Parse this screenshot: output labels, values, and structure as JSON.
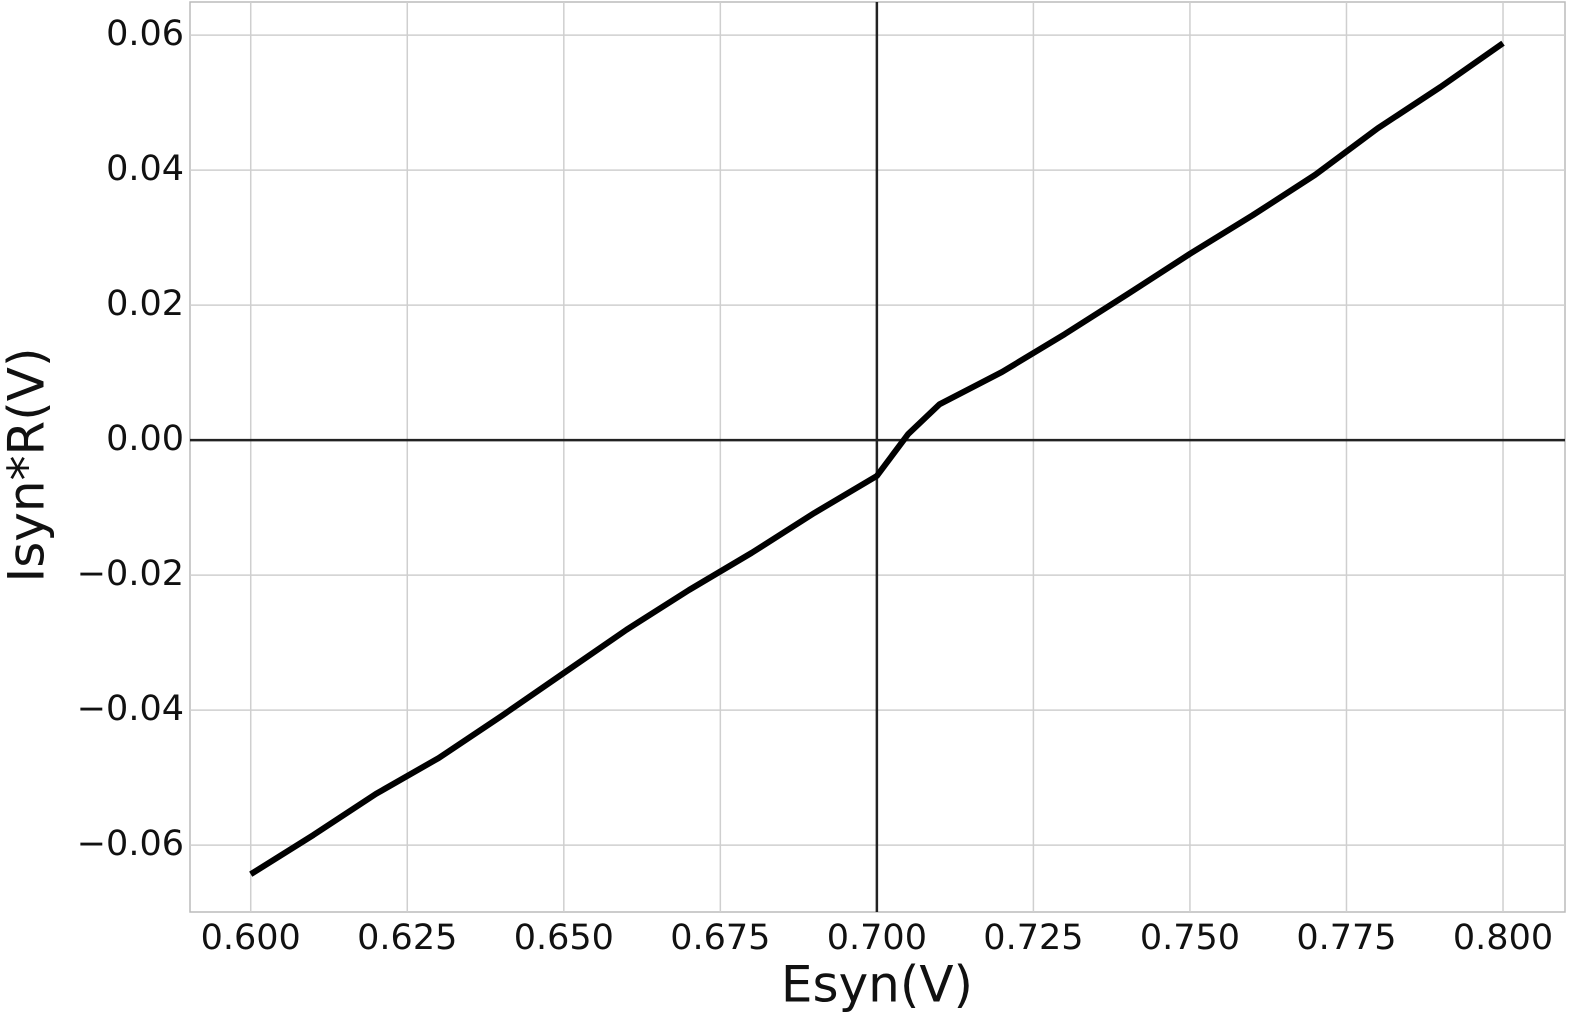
{
  "chart_data": {
    "type": "line",
    "xlabel": "Esyn(V)",
    "ylabel": "Isyn*R(V)",
    "x": [
      0.6,
      0.61,
      0.62,
      0.63,
      0.64,
      0.65,
      0.66,
      0.67,
      0.68,
      0.69,
      0.7,
      0.705,
      0.71,
      0.72,
      0.73,
      0.74,
      0.75,
      0.76,
      0.77,
      0.78,
      0.79,
      0.8
    ],
    "series": [
      {
        "color": "#000000",
        "values": [
          -0.0643,
          -0.0585,
          -0.0524,
          -0.0471,
          -0.0409,
          -0.0345,
          -0.0281,
          -0.0222,
          -0.0167,
          -0.0108,
          -0.0053,
          0.0009,
          0.0053,
          0.0101,
          0.0157,
          0.0216,
          0.0276,
          0.0333,
          0.0393,
          0.0462,
          0.0523,
          0.0588
        ]
      }
    ],
    "xlim": [
      0.5903,
      0.8099
    ],
    "ylim": [
      -0.0699,
      0.0649
    ],
    "xticks": [
      {
        "value": 0.6,
        "label": "0.600"
      },
      {
        "value": 0.625,
        "label": "0.625"
      },
      {
        "value": 0.65,
        "label": "0.650"
      },
      {
        "value": 0.675,
        "label": "0.675"
      },
      {
        "value": 0.7,
        "label": "0.700"
      },
      {
        "value": 0.725,
        "label": "0.725"
      },
      {
        "value": 0.75,
        "label": "0.750"
      },
      {
        "value": 0.775,
        "label": "0.775"
      },
      {
        "value": 0.8,
        "label": "0.800"
      }
    ],
    "yticks": [
      {
        "value": -0.06,
        "label": "−0.06"
      },
      {
        "value": -0.04,
        "label": "−0.04"
      },
      {
        "value": -0.02,
        "label": "−0.02"
      },
      {
        "value": 0,
        "label": "0.00"
      },
      {
        "value": 0.02,
        "label": "0.02"
      },
      {
        "value": 0.04,
        "label": "0.04"
      },
      {
        "value": 0.06,
        "label": "0.06"
      }
    ],
    "grid": true,
    "axhline": 0,
    "axvline": 0.7
  }
}
